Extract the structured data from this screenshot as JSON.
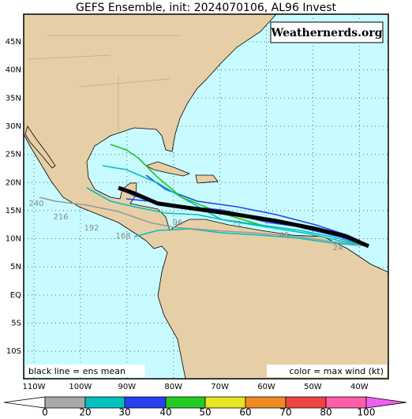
{
  "header": {
    "title": "GEFS Ensemble, init: 2024070106, AL96 Invest",
    "watermark": "Weathernerds.org"
  },
  "map": {
    "lat_labels": [
      "45N",
      "40N",
      "35N",
      "30N",
      "25N",
      "20N",
      "15N",
      "10N",
      "5N",
      "EQ",
      "5S",
      "10S"
    ],
    "lon_labels": [
      "110W",
      "100W",
      "90W",
      "80W",
      "70W",
      "60W",
      "50W",
      "40W"
    ],
    "hour_labels": [
      "240",
      "216",
      "192",
      "168",
      "96",
      "72",
      "48",
      "24"
    ],
    "legend_left": "black line = ens mean",
    "legend_right": "color = max wind (kt)"
  },
  "colorbar": {
    "labels": [
      "0",
      "20",
      "30",
      "40",
      "50",
      "60",
      "70",
      "80",
      "100"
    ]
  }
}
